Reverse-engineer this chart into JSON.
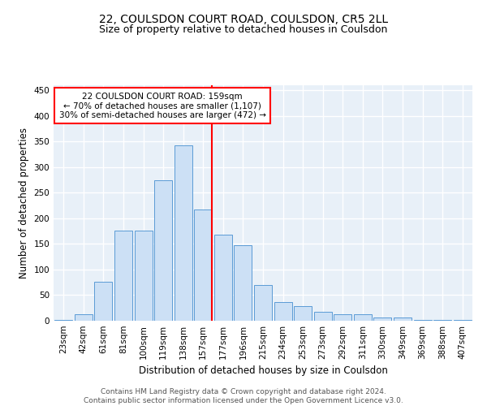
{
  "title": "22, COULSDON COURT ROAD, COULSDON, CR5 2LL",
  "subtitle": "Size of property relative to detached houses in Coulsdon",
  "xlabel": "Distribution of detached houses by size in Coulsdon",
  "ylabel": "Number of detached properties",
  "bar_labels": [
    "23sqm",
    "42sqm",
    "61sqm",
    "81sqm",
    "100sqm",
    "119sqm",
    "138sqm",
    "157sqm",
    "177sqm",
    "196sqm",
    "215sqm",
    "234sqm",
    "253sqm",
    "273sqm",
    "292sqm",
    "311sqm",
    "330sqm",
    "349sqm",
    "369sqm",
    "388sqm",
    "407sqm"
  ],
  "bar_values": [
    2,
    12,
    76,
    176,
    176,
    275,
    342,
    218,
    168,
    147,
    70,
    37,
    28,
    18,
    12,
    13,
    7,
    6,
    1,
    2,
    2
  ],
  "bar_color": "#cce0f5",
  "bar_edge_color": "#5b9bd5",
  "vline_color": "red",
  "annotation_text": "22 COULSDON COURT ROAD: 159sqm\n← 70% of detached houses are smaller (1,107)\n30% of semi-detached houses are larger (472) →",
  "annotation_box_color": "white",
  "annotation_box_edge_color": "red",
  "ylim": [
    0,
    460
  ],
  "yticks": [
    0,
    50,
    100,
    150,
    200,
    250,
    300,
    350,
    400,
    450
  ],
  "footer_text": "Contains HM Land Registry data © Crown copyright and database right 2024.\nContains public sector information licensed under the Open Government Licence v3.0.",
  "title_fontsize": 10,
  "subtitle_fontsize": 9,
  "axis_label_fontsize": 8.5,
  "tick_fontsize": 7.5,
  "annotation_fontsize": 7.5,
  "footer_fontsize": 6.5,
  "background_color": "#e8f0f8",
  "grid_color": "#ffffff",
  "fig_bg_color": "#ffffff"
}
